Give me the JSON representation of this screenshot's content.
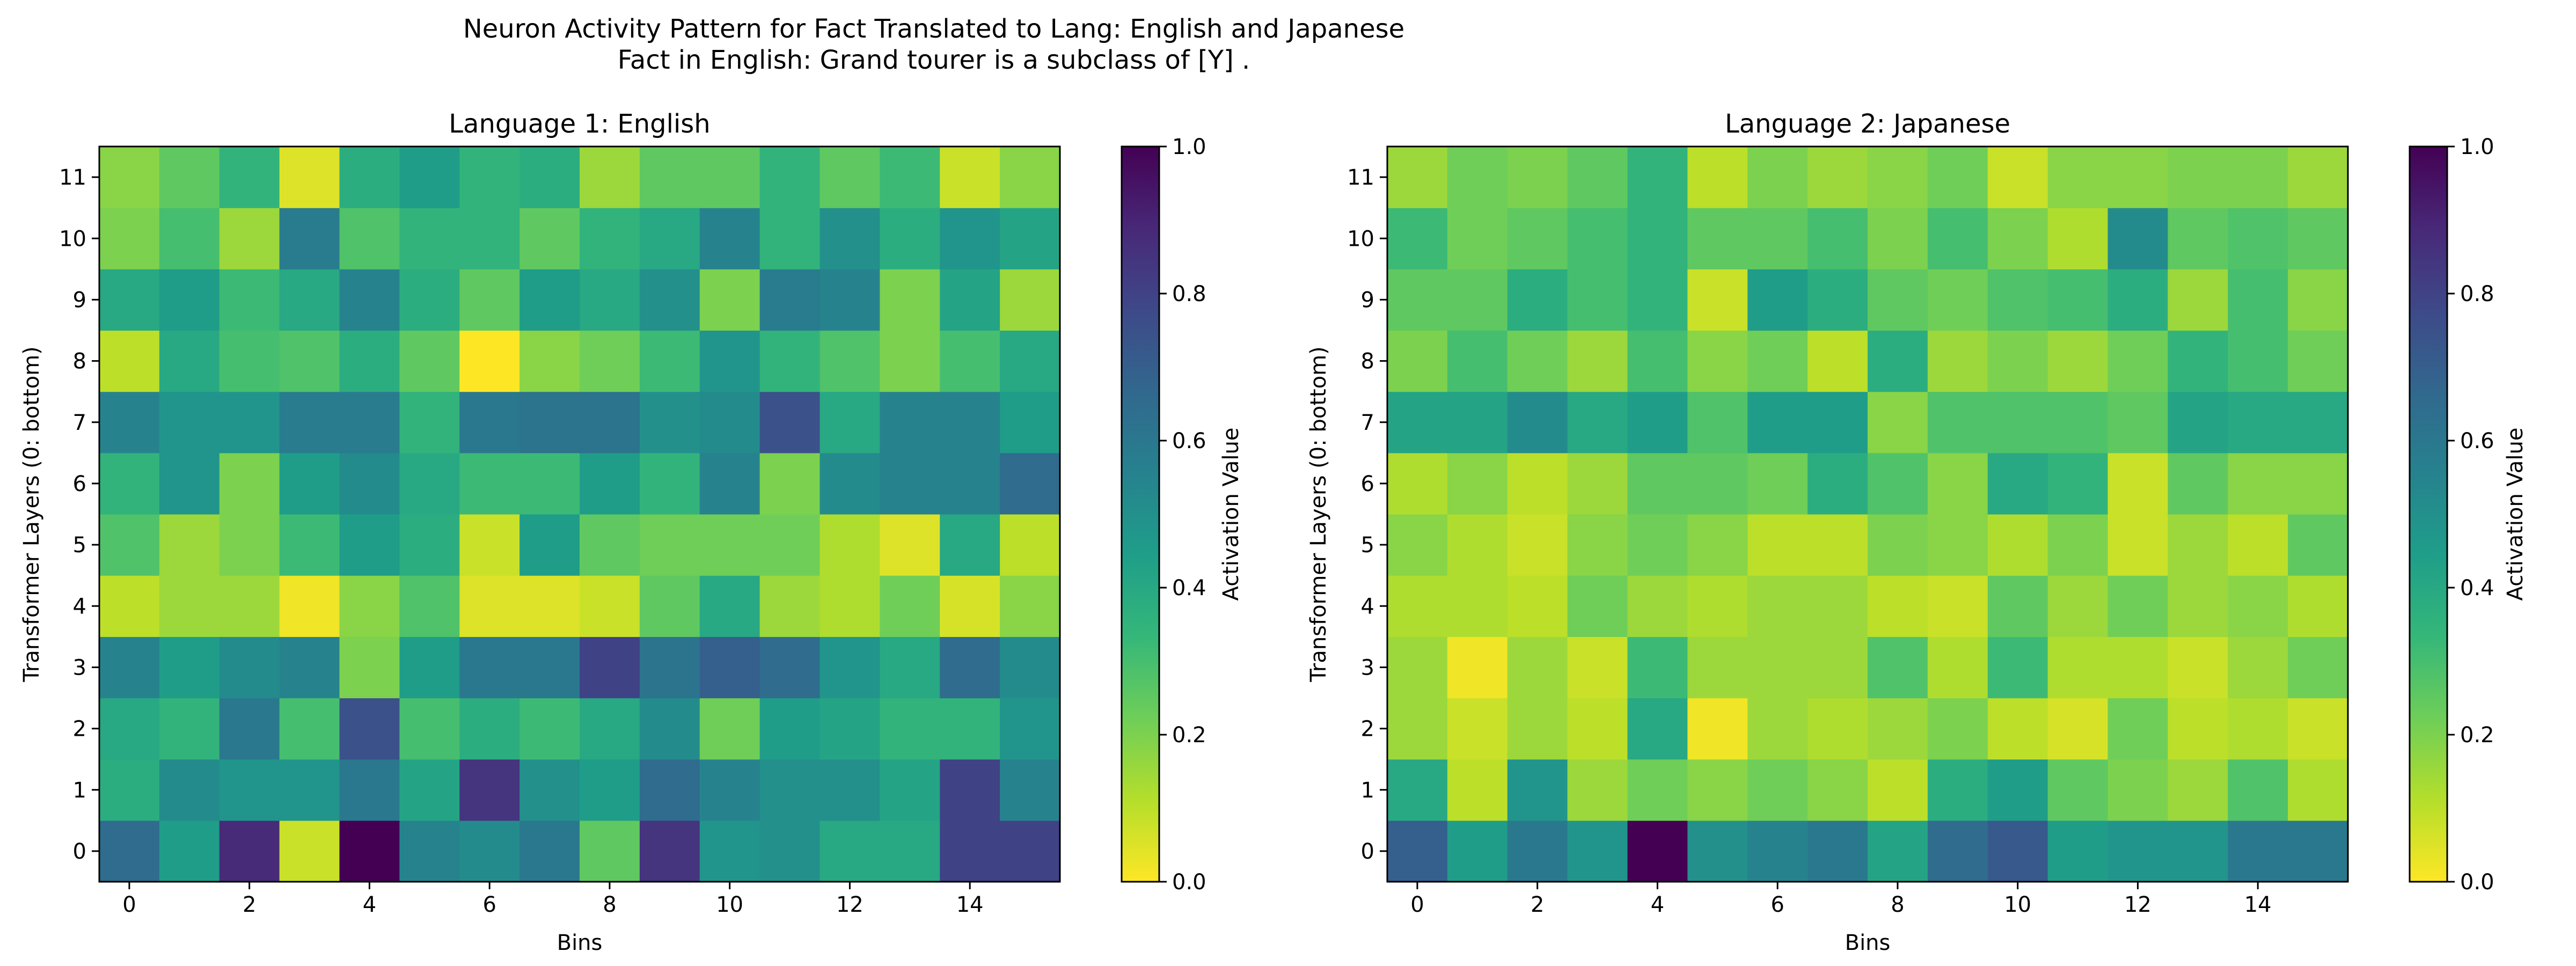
{
  "figure": {
    "title_line1": "Neuron Activity Pattern for Fact Translated to Lang: English and Japanese",
    "title_line2": "Fact in English: Grand tourer is a subclass of [Y] ."
  },
  "colorscale": {
    "name": "viridis_r",
    "stops": [
      "#fde725",
      "#b5de2b",
      "#6ece58",
      "#35b779",
      "#1f9e89",
      "#26828e",
      "#31688e",
      "#3e4989",
      "#482878",
      "#440154"
    ]
  },
  "chart_data": [
    {
      "type": "heatmap",
      "title": "Language 1: English",
      "xlabel": "Bins",
      "ylabel": "Transformer Layers (0: bottom)",
      "colorbar_label": "Activation Value",
      "x_ticks": [
        "0",
        "2",
        "4",
        "6",
        "8",
        "10",
        "12",
        "14"
      ],
      "y_ticks": [
        "0",
        "1",
        "2",
        "3",
        "4",
        "5",
        "6",
        "7",
        "8",
        "9",
        "10",
        "11"
      ],
      "colorbar_ticks": [
        "0.0",
        "0.2",
        "0.4",
        "0.6",
        "0.8",
        "1.0"
      ],
      "vmin": 0,
      "vmax": 1,
      "x_range": [
        0,
        15
      ],
      "y_range": [
        0,
        11
      ],
      "values": [
        [
          0.65,
          0.45,
          0.88,
          0.08,
          1.0,
          0.55,
          0.52,
          0.6,
          0.25,
          0.85,
          0.48,
          0.5,
          0.4,
          0.4,
          0.8,
          0.8
        ],
        [
          0.38,
          0.52,
          0.48,
          0.48,
          0.6,
          0.42,
          0.85,
          0.5,
          0.45,
          0.65,
          0.55,
          0.5,
          0.5,
          0.42,
          0.8,
          0.55
        ],
        [
          0.4,
          0.35,
          0.6,
          0.3,
          0.75,
          0.3,
          0.38,
          0.32,
          0.4,
          0.52,
          0.22,
          0.45,
          0.42,
          0.35,
          0.35,
          0.48
        ],
        [
          0.55,
          0.45,
          0.52,
          0.55,
          0.2,
          0.45,
          0.6,
          0.6,
          0.8,
          0.62,
          0.7,
          0.65,
          0.48,
          0.4,
          0.65,
          0.52
        ],
        [
          0.1,
          0.15,
          0.15,
          0.02,
          0.18,
          0.28,
          0.05,
          0.05,
          0.08,
          0.25,
          0.4,
          0.15,
          0.12,
          0.22,
          0.06,
          0.18
        ],
        [
          0.28,
          0.15,
          0.2,
          0.32,
          0.45,
          0.38,
          0.08,
          0.45,
          0.25,
          0.22,
          0.22,
          0.22,
          0.12,
          0.05,
          0.4,
          0.1
        ],
        [
          0.35,
          0.48,
          0.2,
          0.45,
          0.52,
          0.4,
          0.32,
          0.32,
          0.45,
          0.35,
          0.55,
          0.2,
          0.52,
          0.55,
          0.55,
          0.65
        ],
        [
          0.55,
          0.48,
          0.48,
          0.58,
          0.58,
          0.35,
          0.6,
          0.62,
          0.62,
          0.5,
          0.52,
          0.75,
          0.4,
          0.55,
          0.55,
          0.45
        ],
        [
          0.1,
          0.4,
          0.3,
          0.28,
          0.38,
          0.25,
          0.0,
          0.18,
          0.22,
          0.32,
          0.48,
          0.35,
          0.28,
          0.2,
          0.3,
          0.4
        ],
        [
          0.4,
          0.45,
          0.32,
          0.4,
          0.55,
          0.38,
          0.25,
          0.45,
          0.4,
          0.5,
          0.2,
          0.58,
          0.55,
          0.2,
          0.42,
          0.15
        ],
        [
          0.2,
          0.3,
          0.15,
          0.58,
          0.28,
          0.35,
          0.35,
          0.25,
          0.35,
          0.4,
          0.55,
          0.35,
          0.5,
          0.38,
          0.48,
          0.42
        ],
        [
          0.18,
          0.25,
          0.35,
          0.05,
          0.38,
          0.45,
          0.35,
          0.38,
          0.15,
          0.25,
          0.25,
          0.35,
          0.25,
          0.32,
          0.08,
          0.18
        ]
      ]
    },
    {
      "type": "heatmap",
      "title": "Language 2: Japanese",
      "xlabel": "Bins",
      "ylabel": "Transformer Layers (0: bottom)",
      "colorbar_label": "Activation Value",
      "x_ticks": [
        "0",
        "2",
        "4",
        "6",
        "8",
        "10",
        "12",
        "14"
      ],
      "y_ticks": [
        "0",
        "1",
        "2",
        "3",
        "4",
        "5",
        "6",
        "7",
        "8",
        "9",
        "10",
        "11"
      ],
      "colorbar_ticks": [
        "0.0",
        "0.2",
        "0.4",
        "0.6",
        "0.8",
        "1.0"
      ],
      "vmin": 0,
      "vmax": 1,
      "x_range": [
        0,
        15
      ],
      "y_range": [
        0,
        11
      ],
      "values": [
        [
          0.7,
          0.45,
          0.6,
          0.48,
          1.0,
          0.5,
          0.55,
          0.6,
          0.42,
          0.65,
          0.72,
          0.45,
          0.48,
          0.48,
          0.6,
          0.6
        ],
        [
          0.4,
          0.1,
          0.48,
          0.15,
          0.22,
          0.18,
          0.22,
          0.18,
          0.1,
          0.38,
          0.45,
          0.25,
          0.2,
          0.15,
          0.28,
          0.12
        ],
        [
          0.15,
          0.08,
          0.15,
          0.1,
          0.4,
          0.02,
          0.15,
          0.12,
          0.15,
          0.2,
          0.1,
          0.06,
          0.22,
          0.1,
          0.12,
          0.08
        ],
        [
          0.15,
          0.02,
          0.15,
          0.08,
          0.32,
          0.15,
          0.15,
          0.15,
          0.28,
          0.12,
          0.32,
          0.12,
          0.12,
          0.08,
          0.15,
          0.22
        ],
        [
          0.12,
          0.12,
          0.1,
          0.22,
          0.15,
          0.12,
          0.15,
          0.15,
          0.1,
          0.08,
          0.25,
          0.15,
          0.22,
          0.15,
          0.18,
          0.12
        ],
        [
          0.18,
          0.12,
          0.08,
          0.18,
          0.22,
          0.18,
          0.1,
          0.1,
          0.2,
          0.18,
          0.12,
          0.2,
          0.08,
          0.15,
          0.1,
          0.25
        ],
        [
          0.12,
          0.18,
          0.1,
          0.15,
          0.25,
          0.25,
          0.22,
          0.38,
          0.28,
          0.18,
          0.4,
          0.35,
          0.08,
          0.25,
          0.18,
          0.18
        ],
        [
          0.42,
          0.42,
          0.52,
          0.4,
          0.45,
          0.28,
          0.45,
          0.45,
          0.18,
          0.28,
          0.28,
          0.28,
          0.25,
          0.42,
          0.4,
          0.4
        ],
        [
          0.2,
          0.3,
          0.22,
          0.15,
          0.3,
          0.18,
          0.22,
          0.1,
          0.38,
          0.15,
          0.2,
          0.15,
          0.22,
          0.35,
          0.3,
          0.22
        ],
        [
          0.25,
          0.25,
          0.38,
          0.3,
          0.35,
          0.08,
          0.45,
          0.38,
          0.25,
          0.22,
          0.28,
          0.3,
          0.38,
          0.15,
          0.3,
          0.18
        ],
        [
          0.32,
          0.22,
          0.25,
          0.3,
          0.35,
          0.25,
          0.25,
          0.3,
          0.2,
          0.3,
          0.2,
          0.12,
          0.52,
          0.25,
          0.28,
          0.25
        ],
        [
          0.15,
          0.22,
          0.2,
          0.25,
          0.35,
          0.1,
          0.2,
          0.15,
          0.18,
          0.22,
          0.08,
          0.18,
          0.18,
          0.2,
          0.2,
          0.15
        ]
      ]
    }
  ]
}
